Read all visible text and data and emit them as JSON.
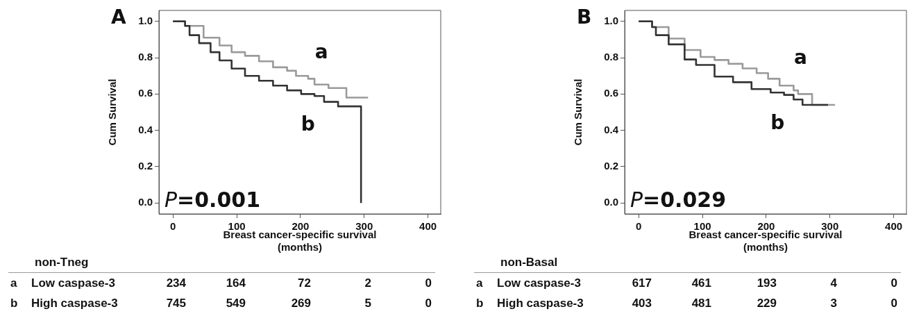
{
  "chart_data": [
    {
      "type": "step",
      "xlabel": "Breast cancer-specific survival\n(months)",
      "ylabel": "Cum Survival",
      "xlim": [
        -22,
        420
      ],
      "xticks": [
        0,
        100,
        200,
        300,
        400
      ],
      "ylim": [
        -0.06,
        1.06
      ],
      "yticks": [
        {
          "value": 0,
          "label": "0.0"
        },
        {
          "value": 0.2,
          "label": "0.2"
        },
        {
          "value": 0.4,
          "label": "0.4"
        },
        {
          "value": 0.6,
          "label": "0.6"
        },
        {
          "value": 0.8,
          "label": "0.8"
        },
        {
          "value": 1,
          "label": "1.0"
        }
      ],
      "grid": false,
      "legend": false,
      "series": [
        {
          "name": "a",
          "color": "#9a9a9a",
          "x": [
            0,
            19,
            48,
            73,
            92,
            113,
            135,
            157,
            179,
            193,
            212,
            222,
            244,
            272,
            272,
            306
          ],
          "values": [
            1.0,
            0.975,
            0.91,
            0.867,
            0.83,
            0.81,
            0.78,
            0.747,
            0.728,
            0.7,
            0.684,
            0.652,
            0.633,
            0.633,
            0.58,
            0.58
          ]
        },
        {
          "name": "b",
          "color": "#333333",
          "x": [
            0,
            19,
            26,
            41,
            59,
            73,
            92,
            113,
            135,
            157,
            179,
            201,
            222,
            237,
            259,
            295,
            295
          ],
          "values": [
            1.0,
            0.975,
            0.924,
            0.88,
            0.83,
            0.785,
            0.74,
            0.7,
            0.673,
            0.646,
            0.62,
            0.6,
            0.589,
            0.557,
            0.532,
            0.532,
            0.0
          ]
        }
      ],
      "annotations": [
        "A",
        "P=0.001",
        "non-Tneg",
        "a",
        "Low caspase-3",
        "234",
        "164",
        "72",
        "2",
        "0",
        "b",
        "High caspase-3",
        "745",
        "549",
        "269",
        "5",
        "0"
      ]
    },
    {
      "type": "step",
      "xlabel": "Breast cancer-specific survival\n(months)",
      "ylabel": "Cum Survival",
      "xlim": [
        -22,
        420
      ],
      "xticks": [
        0,
        100,
        200,
        300,
        400
      ],
      "ylim": [
        -0.06,
        1.06
      ],
      "yticks": [
        {
          "value": 0,
          "label": "0.0"
        },
        {
          "value": 0.2,
          "label": "0.2"
        },
        {
          "value": 0.4,
          "label": "0.4"
        },
        {
          "value": 0.6,
          "label": "0.6"
        },
        {
          "value": 0.8,
          "label": "0.8"
        },
        {
          "value": 1,
          "label": "1.0"
        }
      ],
      "grid": false,
      "legend": false,
      "series": [
        {
          "name": "a",
          "color": "#9a9a9a",
          "x": [
            0,
            21,
            47,
            72,
            97,
            119,
            141,
            163,
            185,
            203,
            221,
            243,
            250,
            272,
            272,
            308
          ],
          "values": [
            1.0,
            0.968,
            0.905,
            0.842,
            0.804,
            0.787,
            0.766,
            0.741,
            0.715,
            0.684,
            0.646,
            0.62,
            0.6,
            0.6,
            0.54,
            0.54
          ]
        },
        {
          "name": "b",
          "color": "#333333",
          "x": [
            0,
            21,
            27,
            47,
            72,
            90,
            119,
            148,
            177,
            207,
            228,
            243,
            257,
            297
          ],
          "values": [
            1.0,
            0.968,
            0.924,
            0.873,
            0.79,
            0.76,
            0.696,
            0.665,
            0.627,
            0.608,
            0.595,
            0.57,
            0.54,
            0.54
          ]
        }
      ],
      "annotations": [
        "B",
        "P=0.029",
        "non-Basal",
        "a",
        "Low caspase-3",
        "617",
        "461",
        "193",
        "4",
        "0",
        "b",
        "High caspase-3",
        "403",
        "481",
        "229",
        "3",
        "0"
      ]
    }
  ]
}
